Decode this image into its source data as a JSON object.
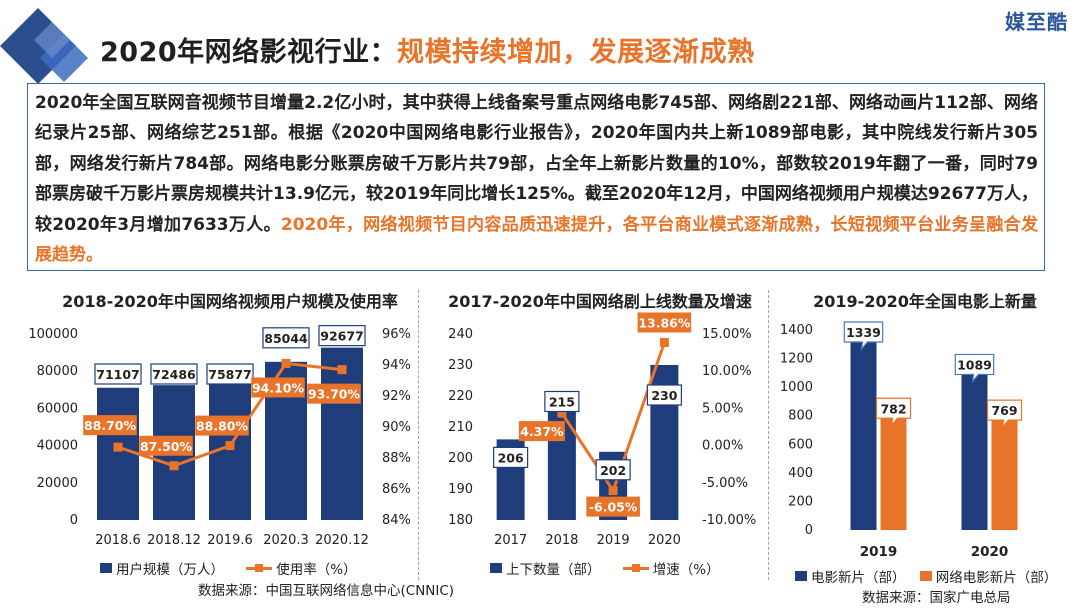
{
  "brand": "媒至酷",
  "header": {
    "title_prefix": "2020年网络影视行业：",
    "title_highlight": "规模持续增加，发展逐渐成熟"
  },
  "summary": {
    "text": "2020年全国互联网音视频节目增量2.2亿小时，其中获得上线备案号重点网络电影745部、网络剧221部、网络动画片112部、网络纪录片25部、网络综艺251部。根据《2020中国网络电影行业报告》，2020年国内共上新1089部电影，其中院线发行新片305部，网络发行新片784部。网络电影分账票房破千万影片共79部，占全年上新影片数量的10%，部数较2019年翻了一番，同时79部票房破千万影片票房规模共计13.9亿元，较2019年同比增长125%。截至2020年12月，中国网络视频用户规模达92677万人，较2020年3月增加7633万人。",
    "highlight": "2020年，网络视频节目内容品质迅速提升，各平台商业模式逐渐成熟，长短视频平台业务呈融合发展趋势。"
  },
  "colors": {
    "bar": "#1f3d7a",
    "bar_dark": "#172f5f",
    "line": "#e8742a",
    "accent_text": "#e8742a",
    "divider": "#9aa3b0"
  },
  "chart_data": [
    {
      "type": "bar",
      "title": "2018-2020年中国网络视频用户规模及使用率",
      "categories": [
        "2018.6",
        "2018.12",
        "2019.6",
        "2020.3",
        "2020.12"
      ],
      "series": [
        {
          "name": "用户规模（万人）",
          "type": "bar",
          "axis": "left",
          "values": [
            71107,
            72486,
            75877,
            85044,
            92677
          ]
        },
        {
          "name": "使用率（%）",
          "type": "line",
          "axis": "right",
          "values": [
            88.7,
            87.5,
            88.8,
            94.1,
            93.7
          ],
          "labels": [
            "88.70%",
            "87.50%",
            "88.80%",
            "94.10%",
            "93.70%"
          ]
        }
      ],
      "ylim_left": [
        0,
        100000
      ],
      "yticks_left": [
        "0",
        "20000",
        "40000",
        "60000",
        "80000",
        "100000"
      ],
      "ylim_right": [
        84,
        96
      ],
      "yticks_right": [
        "84%",
        "86%",
        "88%",
        "90%",
        "92%",
        "94%",
        "96%"
      ],
      "legend": "bottom",
      "source": "数据来源：中国互联网络信息中心(CNNIC)"
    },
    {
      "type": "bar",
      "title": "2017-2020年中国网络剧上线数量及增速",
      "categories": [
        "2017",
        "2018",
        "2019",
        "2020"
      ],
      "series": [
        {
          "name": "上下数量（部）",
          "type": "bar",
          "axis": "left",
          "values": [
            206,
            215,
            202,
            230
          ]
        },
        {
          "name": "增速（%）",
          "type": "line",
          "axis": "right",
          "values": [
            null,
            4.37,
            -6.05,
            13.86
          ],
          "labels": [
            "",
            "4.37%",
            "-6.05%",
            "13.86%"
          ]
        }
      ],
      "ylim_left": [
        180,
        240
      ],
      "yticks_left": [
        "180",
        "190",
        "200",
        "210",
        "220",
        "230",
        "240"
      ],
      "ylim_right": [
        -10,
        15
      ],
      "yticks_right": [
        "-10.00%",
        "-5.00%",
        "0.00%",
        "5.00%",
        "10.00%",
        "15.00%"
      ],
      "legend": "bottom"
    },
    {
      "type": "bar",
      "title": "2019-2020年全国电影上新量",
      "categories": [
        "2019",
        "2020"
      ],
      "series": [
        {
          "name": "电影新片（部）",
          "values": [
            1339,
            1089
          ]
        },
        {
          "name": "网络电影新片（部）",
          "values": [
            782,
            769
          ]
        }
      ],
      "ylim": [
        0,
        1400
      ],
      "yticks": [
        "0",
        "200",
        "400",
        "600",
        "800",
        "1000",
        "1200",
        "1400"
      ],
      "legend": "bottom",
      "source": "数据来源：国家广电总局"
    }
  ]
}
